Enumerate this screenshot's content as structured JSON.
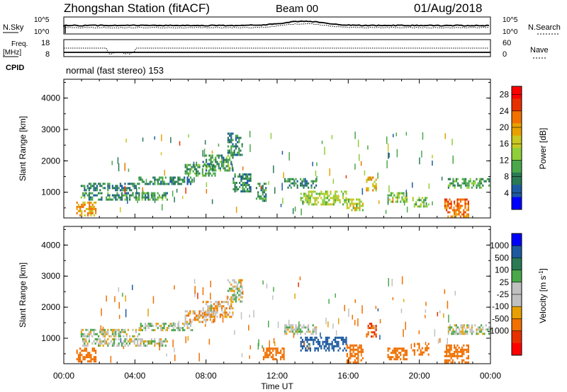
{
  "header": {
    "title": "Zhongshan Station (fitACF)",
    "beam": "Beam 00",
    "date": "01/Aug/2018"
  },
  "strip_panels": {
    "noise": {
      "left_label": "N.Sky",
      "right_label": "N.Search",
      "left_ticks": [
        "10^5",
        "10^0"
      ],
      "right_ticks": [
        "10^5",
        "10^0"
      ]
    },
    "freq": {
      "left_label_1": "Freq.",
      "left_label_2": "[MHz]",
      "right_label": "Nave",
      "left_ticks": [
        "18",
        "8"
      ],
      "right_ticks": [
        "60",
        "0"
      ]
    },
    "cpid": {
      "label": "CPID",
      "text": "normal (fast stereo) 153"
    }
  },
  "chart_data": [
    {
      "type": "heatmap",
      "title": "",
      "xlabel": "Time UT",
      "ylabel": "Slant Range [km]",
      "xlim": [
        "00:00",
        "24:00"
      ],
      "x_ticks": [
        "00:00",
        "04:00",
        "08:00",
        "12:00",
        "16:00",
        "20:00",
        "00:00"
      ],
      "ylim": [
        180,
        4600
      ],
      "y_ticks": [
        1000,
        2000,
        3000,
        4000
      ],
      "colorbar": {
        "label": "Power [dB]",
        "range": [
          0,
          30
        ],
        "ticks": [
          "4",
          "8",
          "12",
          "16",
          "20",
          "24",
          "28"
        ],
        "colors": [
          "#0000ff",
          "#1e5aa0",
          "#2a7a55",
          "#4aa84a",
          "#8fcf3a",
          "#c8c820",
          "#e8a000",
          "#f07000",
          "#e83000",
          "#ff0000"
        ]
      },
      "echo_regions": [
        {
          "t0": 0.95,
          "t1": 4.2,
          "r0": 1050,
          "r1": 1300,
          "power": 7
        },
        {
          "t0": 0.95,
          "t1": 5.8,
          "r0": 750,
          "r1": 1000,
          "power": 9
        },
        {
          "t0": 4.2,
          "t1": 7.2,
          "r0": 1250,
          "r1": 1500,
          "power": 8
        },
        {
          "t0": 6.8,
          "t1": 8.5,
          "r0": 1500,
          "r1": 1900,
          "power": 10
        },
        {
          "t0": 7.8,
          "t1": 9.5,
          "r0": 1700,
          "r1": 2200,
          "power": 9
        },
        {
          "t0": 9.2,
          "t1": 10.0,
          "r0": 2200,
          "r1": 2900,
          "power": 8
        },
        {
          "t0": 9.5,
          "t1": 10.5,
          "r0": 1000,
          "r1": 1600,
          "power": 8
        },
        {
          "t0": 10.8,
          "t1": 11.4,
          "r0": 700,
          "r1": 1300,
          "power": 9
        },
        {
          "t0": 12.4,
          "t1": 14.2,
          "r0": 1150,
          "r1": 1450,
          "power": 8
        },
        {
          "t0": 13.3,
          "t1": 15.9,
          "r0": 600,
          "r1": 1050,
          "power": 14
        },
        {
          "t0": 15.9,
          "t1": 16.8,
          "r0": 450,
          "r1": 800,
          "power": 15
        },
        {
          "t0": 17.0,
          "t1": 17.6,
          "r0": 1050,
          "r1": 1500,
          "power": 18
        },
        {
          "t0": 18.2,
          "t1": 19.3,
          "r0": 700,
          "r1": 1000,
          "power": 12
        },
        {
          "t0": 19.6,
          "t1": 20.5,
          "r0": 550,
          "r1": 850,
          "power": 12
        },
        {
          "t0": 21.6,
          "t1": 24.0,
          "r0": 1150,
          "r1": 1450,
          "power": 10
        },
        {
          "t0": 21.4,
          "t1": 22.8,
          "r0": 220,
          "r1": 800,
          "power": 22
        },
        {
          "t0": 0.7,
          "t1": 1.8,
          "r0": 250,
          "r1": 700,
          "power": 20
        }
      ]
    },
    {
      "type": "heatmap",
      "title": "",
      "xlabel": "Time UT",
      "ylabel": "Slant Range [km]",
      "xlim": [
        "00:00",
        "24:00"
      ],
      "x_ticks": [
        "00:00",
        "04:00",
        "08:00",
        "12:00",
        "16:00",
        "20:00",
        "00:00"
      ],
      "ylim": [
        180,
        4600
      ],
      "y_ticks": [
        1000,
        2000,
        3000,
        4000
      ],
      "colorbar": {
        "label": "Velocity [m s^-1]",
        "ticks": [
          "1000",
          "500",
          "100",
          "25",
          "-25",
          "-100",
          "-500",
          "-1000"
        ],
        "colors": [
          "#0000ff",
          "#1e5aa0",
          "#2a7a55",
          "#4aa84a",
          "#c0c0c0",
          "#c0c0c0",
          "#e8a000",
          "#f07000",
          "#e83000",
          "#ff0000"
        ]
      },
      "echo_regions": [
        {
          "t0": 0.95,
          "t1": 4.2,
          "r0": 1050,
          "r1": 1300,
          "vel": 0
        },
        {
          "t0": 0.95,
          "t1": 5.8,
          "r0": 750,
          "r1": 1000,
          "vel": 0
        },
        {
          "t0": 4.2,
          "t1": 7.2,
          "r0": 1250,
          "r1": 1500,
          "vel": 0
        },
        {
          "t0": 6.8,
          "t1": 8.5,
          "r0": 1500,
          "r1": 1900,
          "vel": -40
        },
        {
          "t0": 7.8,
          "t1": 9.5,
          "r0": 1700,
          "r1": 2200,
          "vel": -40
        },
        {
          "t0": 9.2,
          "t1": 10.0,
          "r0": 2200,
          "r1": 2900,
          "vel": 0
        },
        {
          "t0": 12.4,
          "t1": 14.2,
          "r0": 1150,
          "r1": 1450,
          "vel": 0
        },
        {
          "t0": 13.3,
          "t1": 15.9,
          "r0": 600,
          "r1": 1050,
          "vel": 400
        },
        {
          "t0": 15.9,
          "t1": 16.8,
          "r0": 250,
          "r1": 800,
          "vel": -200
        },
        {
          "t0": 17.0,
          "t1": 17.6,
          "r0": 1050,
          "r1": 1500,
          "vel": -300
        },
        {
          "t0": 18.2,
          "t1": 19.3,
          "r0": 300,
          "r1": 700,
          "vel": -200
        },
        {
          "t0": 19.6,
          "t1": 20.5,
          "r0": 500,
          "r1": 850,
          "vel": -200
        },
        {
          "t0": 21.6,
          "t1": 24.0,
          "r0": 1150,
          "r1": 1450,
          "vel": 0
        },
        {
          "t0": 21.4,
          "t1": 22.8,
          "r0": 220,
          "r1": 800,
          "vel": -150
        },
        {
          "t0": 0.7,
          "t1": 1.8,
          "r0": 250,
          "r1": 700,
          "vel": -200
        },
        {
          "t0": 11.2,
          "t1": 12.4,
          "r0": 300,
          "r1": 700,
          "vel": -200
        }
      ]
    }
  ]
}
